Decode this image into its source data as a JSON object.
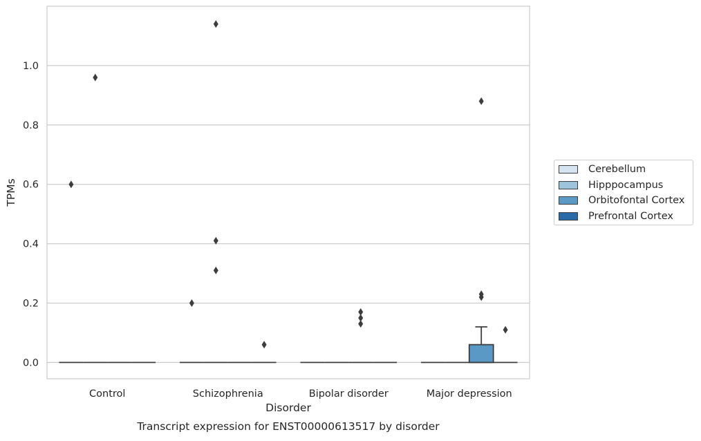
{
  "chart_data": {
    "type": "box",
    "title": "Transcript expression for ENST00000613517 by disorder",
    "xlabel": "Disorder",
    "ylabel": "TPMs",
    "categories": [
      "Control",
      "Schizophrenia",
      "Bipolar disorder",
      "Major depression"
    ],
    "ylim": [
      -0.055,
      1.2
    ],
    "yticks": [
      0.0,
      0.2,
      0.4,
      0.6,
      0.8,
      1.0
    ],
    "ytick_labels": [
      "0.0",
      "0.2",
      "0.4",
      "0.6",
      "0.8",
      "1.0"
    ],
    "grid": true,
    "legend_position": "right",
    "series": [
      {
        "name": "Cerebellum",
        "color": "#d6e4f2",
        "boxes": [
          {
            "q1": 0,
            "median": 0,
            "q3": 0,
            "whisker_low": 0,
            "whisker_high": 0,
            "outliers": [
              0.6
            ]
          },
          {
            "q1": 0,
            "median": 0,
            "q3": 0,
            "whisker_low": 0,
            "whisker_high": 0,
            "outliers": [
              0.2
            ]
          },
          {
            "q1": 0,
            "median": 0,
            "q3": 0,
            "whisker_low": 0,
            "whisker_high": 0,
            "outliers": []
          },
          {
            "q1": 0,
            "median": 0,
            "q3": 0,
            "whisker_low": 0,
            "whisker_high": 0,
            "outliers": []
          }
        ]
      },
      {
        "name": "Hipppocampus",
        "color": "#9dc3dd",
        "boxes": [
          {
            "q1": 0,
            "median": 0,
            "q3": 0,
            "whisker_low": 0,
            "whisker_high": 0,
            "outliers": [
              0.96
            ]
          },
          {
            "q1": 0,
            "median": 0,
            "q3": 0,
            "whisker_low": 0,
            "whisker_high": 0,
            "outliers": [
              1.14,
              0.41,
              0.31
            ]
          },
          {
            "q1": 0,
            "median": 0,
            "q3": 0,
            "whisker_low": 0,
            "whisker_high": 0,
            "outliers": []
          },
          {
            "q1": 0,
            "median": 0,
            "q3": 0,
            "whisker_low": 0,
            "whisker_high": 0,
            "outliers": []
          }
        ]
      },
      {
        "name": "Orbitofontal Cortex",
        "color": "#5a98c5",
        "boxes": [
          {
            "q1": 0,
            "median": 0,
            "q3": 0,
            "whisker_low": 0,
            "whisker_high": 0,
            "outliers": []
          },
          {
            "q1": 0,
            "median": 0,
            "q3": 0,
            "whisker_low": 0,
            "whisker_high": 0,
            "outliers": []
          },
          {
            "q1": 0,
            "median": 0,
            "q3": 0,
            "whisker_low": 0,
            "whisker_high": 0,
            "outliers": [
              0.17,
              0.15,
              0.13
            ]
          },
          {
            "q1": 0,
            "median": 0,
            "q3": 0.06,
            "whisker_low": 0,
            "whisker_high": 0.12,
            "outliers": [
              0.88,
              0.23,
              0.22
            ]
          }
        ]
      },
      {
        "name": "Prefrontal Cortex",
        "color": "#2a6aa8",
        "boxes": [
          {
            "q1": 0,
            "median": 0,
            "q3": 0,
            "whisker_low": 0,
            "whisker_high": 0,
            "outliers": []
          },
          {
            "q1": 0,
            "median": 0,
            "q3": 0,
            "whisker_low": 0,
            "whisker_high": 0,
            "outliers": [
              0.06
            ]
          },
          {
            "q1": 0,
            "median": 0,
            "q3": 0,
            "whisker_low": 0,
            "whisker_high": 0,
            "outliers": []
          },
          {
            "q1": 0,
            "median": 0,
            "q3": 0,
            "whisker_low": 0,
            "whisker_high": 0,
            "outliers": [
              0.11
            ]
          }
        ]
      }
    ]
  }
}
